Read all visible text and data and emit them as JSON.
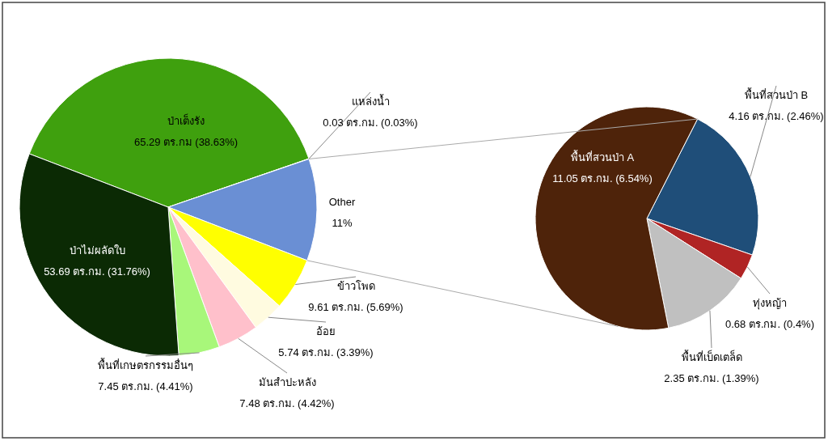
{
  "chart_data": [
    {
      "type": "pie",
      "categories": [
        "ป่าเต็งรัง",
        "แหล่งน้ำ",
        "Other",
        "ข้าวโพด",
        "อ้อย",
        "มันสำปะหลัง",
        "พื้นที่เกษตรกรรมอื่นๆ",
        "ป่าไม่ผลัดใบ"
      ],
      "values": [
        38.63,
        0.03,
        11,
        5.69,
        3.39,
        4.42,
        4.41,
        31.76
      ],
      "colors": [
        "#3fa00e",
        "#4a90d9",
        "#6a8fd4",
        "#ffff00",
        "#fffbe0",
        "#ffc0cb",
        "#a8f77a",
        "#0b2a04"
      ],
      "value_labels": [
        "65.29 ตร.กม (38.63%)",
        "0.03 ตร.กม. (0.03%)",
        "11%",
        "9.61 ตร.กม. (5.69%)",
        "5.74 ตร.กม. (3.39%)",
        "7.48 ตร.กม. (4.42%)",
        "7.45 ตร.กม. (4.41%)",
        "53.69 ตร.กม. (31.76%)"
      ]
    },
    {
      "type": "pie",
      "categories": [
        "พื้นที่สวนป่า B",
        "ทุ่งหญ้า",
        "พื้นที่เบ็ดเตล็ด",
        "พื้นที่สวนป่า A"
      ],
      "values": [
        2.46,
        0.4,
        1.39,
        6.54
      ],
      "colors": [
        "#1f4e79",
        "#b02424",
        "#c0c0c0",
        "#4e230a"
      ],
      "value_labels": [
        "4.16 ตร.กม. (2.46%)",
        "0.68 ตร.กม. (0.4%)",
        "2.35 ตร.กม. (1.39%)",
        "11.05 ตร.กม. (6.54%)"
      ]
    }
  ]
}
